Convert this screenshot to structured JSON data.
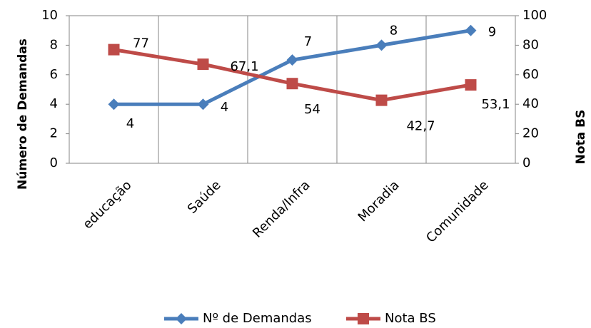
{
  "chart_data": {
    "type": "line",
    "y_label": "Número de Demandas",
    "y2_label": "Nota BS",
    "categories": [
      "educação",
      "Saúde",
      "Renda/Infra",
      "Moradia",
      "Comunidade"
    ],
    "series": [
      {
        "name": "Nº de Demandas",
        "color": "#4a7ebb",
        "marker": "diamond",
        "values": [
          4,
          4,
          7,
          8,
          9
        ]
      },
      {
        "name": "Nota BS",
        "color": "#be4b48",
        "marker": "square",
        "axis": "y2",
        "values": [
          77,
          67.1,
          54,
          42.7,
          53.1
        ],
        "value_labels": [
          "77",
          "67,1",
          "54",
          "42,7",
          "53,1"
        ]
      }
    ],
    "ylim": [
      0,
      10
    ],
    "yticks": [
      0,
      2,
      4,
      6,
      8,
      10
    ],
    "y2lim": [
      0,
      100
    ],
    "y2ticks": [
      0,
      20,
      40,
      60,
      80,
      100
    ],
    "legend": "bottom"
  }
}
